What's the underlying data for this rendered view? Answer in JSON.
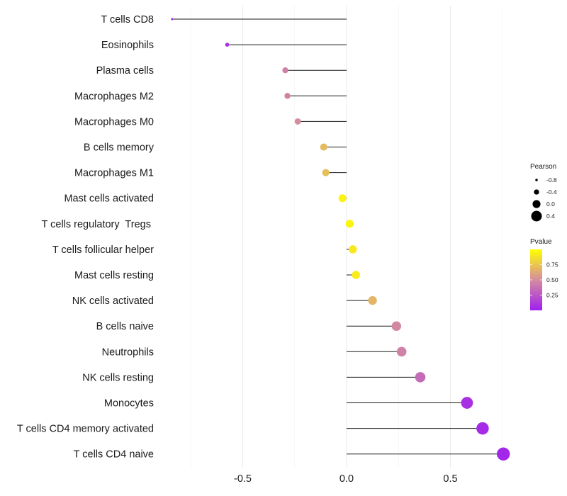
{
  "chart_data": {
    "type": "lollipop",
    "categories": [
      "T cells CD8",
      "Eosinophils",
      "Plasma cells",
      "Macrophages M2",
      "Macrophages M0",
      "B cells memory",
      "Macrophages M1",
      "Mast cells activated",
      "T cells regulatory  Tregs ",
      "T cells follicular helper",
      "Mast cells resting",
      "NK cells activated",
      "B cells naive",
      "Neutrophils",
      "NK cells resting",
      "Monocytes",
      "T cells CD4 memory activated",
      "T cells CD4 naive"
    ],
    "values": [
      -0.84,
      -0.575,
      -0.295,
      -0.285,
      -0.235,
      -0.11,
      -0.1,
      -0.02,
      0.015,
      0.03,
      0.045,
      0.125,
      0.24,
      0.265,
      0.355,
      0.58,
      0.655,
      0.755
    ],
    "pvalues": [
      0.02,
      0.08,
      0.45,
      0.45,
      0.5,
      0.7,
      0.72,
      0.95,
      0.95,
      0.9,
      0.92,
      0.68,
      0.48,
      0.45,
      0.35,
      0.08,
      0.05,
      0.03
    ],
    "xlim": [
      -0.95,
      0.8
    ],
    "xticks": [
      -0.5,
      0.0,
      0.5
    ],
    "xtick_labels": [
      "-0.5",
      "0.0",
      "0.5"
    ],
    "size_legend": {
      "title": "Pearson",
      "values": [
        -0.8,
        -0.4,
        0.0,
        0.4
      ],
      "labels": [
        "-0.8",
        "-0.4",
        "0.0",
        "0.4"
      ]
    },
    "color_legend": {
      "title": "Pvalue",
      "range": [
        0,
        1
      ],
      "ticks": [
        0.75,
        0.5,
        0.25
      ],
      "tick_labels": [
        "0.75",
        "0.50",
        "0.25"
      ],
      "low_color": "#a020f0",
      "mid_color": "#d58c9f",
      "high_color": "#ffff00"
    },
    "grid": "vertical-only",
    "legend_position": "right"
  }
}
